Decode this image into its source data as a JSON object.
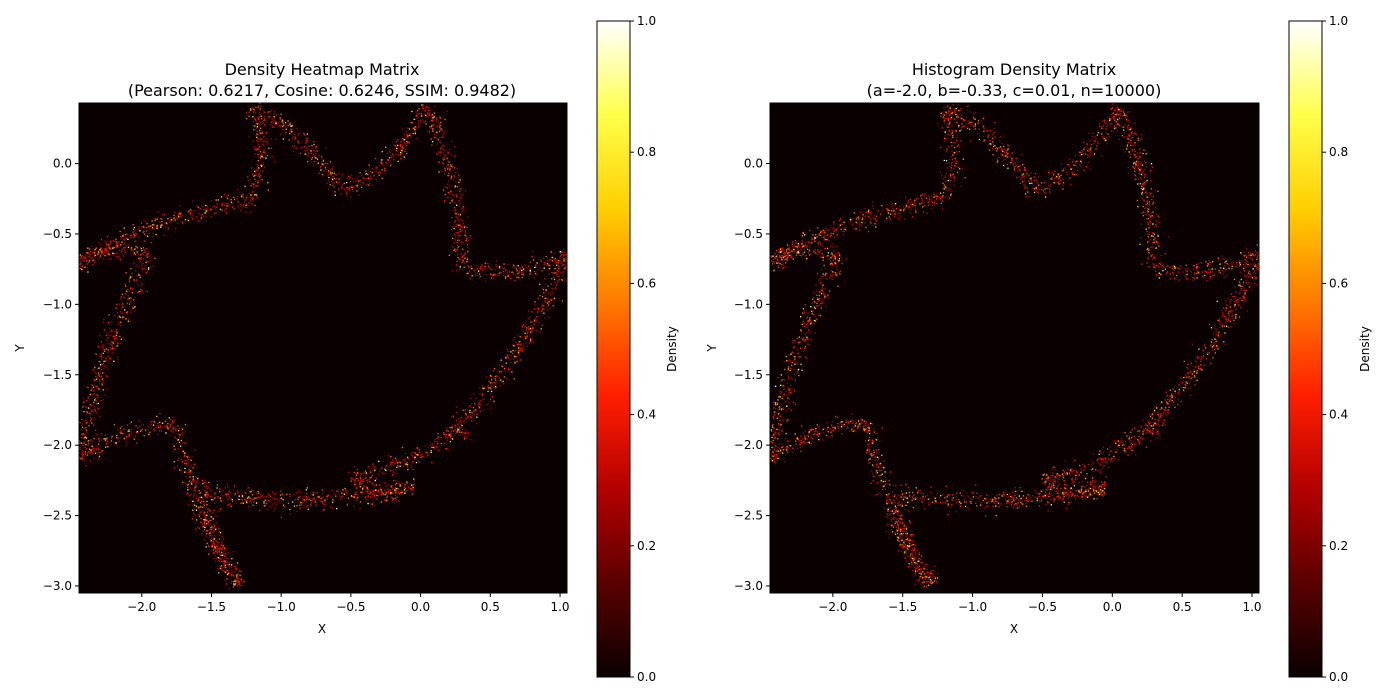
{
  "colormap": {
    "name": "hot",
    "stops": [
      "#0a0000",
      "#5a0000",
      "#b40000",
      "#ff1e00",
      "#ff7a00",
      "#ffcf00",
      "#ffff4a",
      "#ffffff"
    ]
  },
  "chart_data": [
    {
      "type": "heatmap",
      "title_lines": [
        "Density Heatmap Matrix",
        "(Pearson: 0.6217, Cosine: 0.6246, SSIM: 0.9482)"
      ],
      "xlabel": "X",
      "ylabel": "Y",
      "xlim": [
        -2.45,
        1.05
      ],
      "ylim": [
        -3.05,
        0.43
      ],
      "xticks": [
        -2.0,
        -1.5,
        -1.0,
        -0.5,
        0.0,
        0.5,
        1.0
      ],
      "yticks": [
        0.0,
        -0.5,
        -1.0,
        -1.5,
        -2.0,
        -2.5,
        -3.0
      ],
      "xtick_labels": [
        "−2.0",
        "−1.5",
        "−1.0",
        "−0.5",
        "0.0",
        "0.5",
        "1.0"
      ],
      "ytick_labels": [
        "0.0",
        "−0.5",
        "−1.0",
        "−1.5",
        "−2.0",
        "−2.5",
        "−3.0"
      ],
      "colorbar": {
        "label": "Density",
        "range": [
          0.0,
          1.0
        ],
        "ticks": [
          0.0,
          0.2,
          0.4,
          0.6,
          0.8,
          1.0
        ],
        "tick_labels": [
          "0.0",
          "0.2",
          "0.4",
          "0.6",
          "0.8",
          "1.0"
        ]
      },
      "background_density": 0.0,
      "structure": {
        "shape": "eight-point star outline",
        "center": [
          -0.7,
          -1.3
        ],
        "arm_tips": [
          [
            -1.2,
            0.4
          ],
          [
            0.05,
            0.4
          ],
          [
            1.05,
            -0.65
          ],
          [
            0.3,
            -1.85
          ],
          [
            -0.05,
            -2.3
          ],
          [
            -1.3,
            -3.0
          ],
          [
            -2.45,
            -2.1
          ],
          [
            -2.45,
            -0.7
          ]
        ],
        "inner_vertices": [
          [
            -0.55,
            -0.2
          ],
          [
            0.3,
            -0.75
          ],
          [
            0.25,
            -1.9
          ],
          [
            -0.5,
            -2.25
          ],
          [
            -1.55,
            -2.35
          ],
          [
            -1.75,
            -1.85
          ],
          [
            -1.95,
            -0.65
          ],
          [
            -1.2,
            -0.25
          ]
        ]
      }
    },
    {
      "type": "heatmap",
      "title_lines": [
        "Histogram Density Matrix",
        "(a=-2.0, b=-0.33, c=0.01, n=10000)"
      ],
      "xlabel": "X",
      "ylabel": "Y",
      "xlim": [
        -2.45,
        1.05
      ],
      "ylim": [
        -3.05,
        0.43
      ],
      "xticks": [
        -2.0,
        -1.5,
        -1.0,
        -0.5,
        0.0,
        0.5,
        1.0
      ],
      "yticks": [
        0.0,
        -0.5,
        -1.0,
        -1.5,
        -2.0,
        -2.5,
        -3.0
      ],
      "xtick_labels": [
        "−2.0",
        "−1.5",
        "−1.0",
        "−0.5",
        "0.0",
        "0.5",
        "1.0"
      ],
      "ytick_labels": [
        "0.0",
        "−0.5",
        "−1.0",
        "−1.5",
        "−2.0",
        "−2.5",
        "−3.0"
      ],
      "colorbar": {
        "label": "Density",
        "range": [
          0.0,
          1.0
        ],
        "ticks": [
          0.0,
          0.2,
          0.4,
          0.6,
          0.8,
          1.0
        ],
        "tick_labels": [
          "0.0",
          "0.2",
          "0.4",
          "0.6",
          "0.8",
          "1.0"
        ]
      },
      "background_density": 0.0,
      "structure": {
        "shape": "eight-point star outline",
        "center": [
          -0.7,
          -1.3
        ],
        "arm_tips": [
          [
            -1.2,
            0.4
          ],
          [
            0.05,
            0.4
          ],
          [
            1.05,
            -0.65
          ],
          [
            0.3,
            -1.85
          ],
          [
            -0.05,
            -2.3
          ],
          [
            -1.3,
            -3.0
          ],
          [
            -2.45,
            -2.1
          ],
          [
            -2.45,
            -0.7
          ]
        ],
        "inner_vertices": [
          [
            -0.55,
            -0.2
          ],
          [
            0.3,
            -0.75
          ],
          [
            0.25,
            -1.9
          ],
          [
            -0.5,
            -2.25
          ],
          [
            -1.55,
            -2.35
          ],
          [
            -1.75,
            -1.85
          ],
          [
            -1.95,
            -0.65
          ],
          [
            -1.2,
            -0.25
          ]
        ]
      }
    }
  ]
}
